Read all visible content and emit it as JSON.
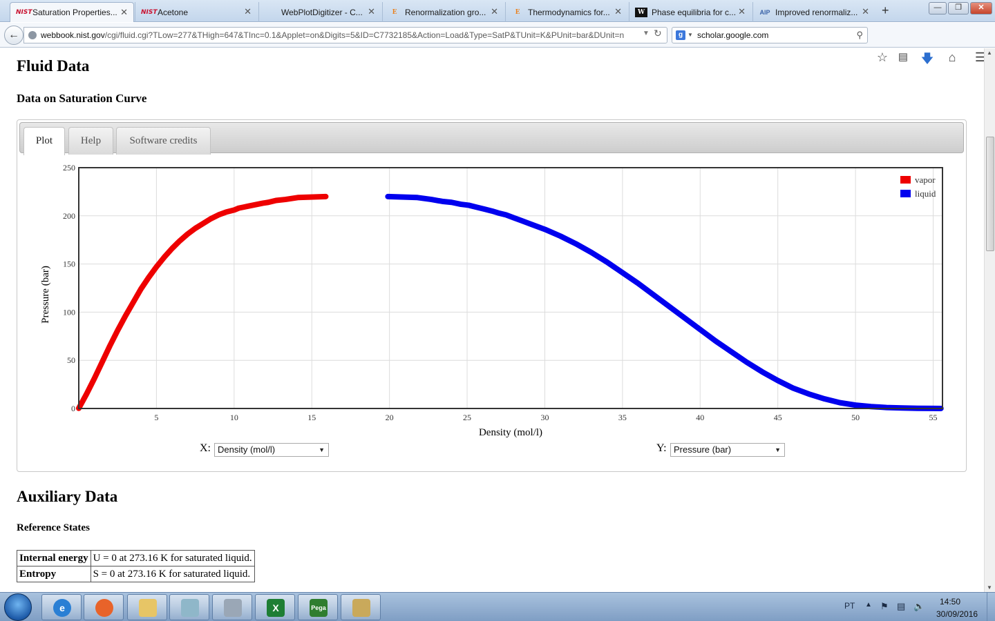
{
  "browser": {
    "tabs": [
      {
        "icon": "nist",
        "title": "Saturation Properties..."
      },
      {
        "icon": "nist",
        "title": "Acetone"
      },
      {
        "icon": "none",
        "title": "WebPlotDigitizer - C..."
      },
      {
        "icon": "e",
        "title": "Renormalization gro..."
      },
      {
        "icon": "e",
        "title": "Thermodynamics for..."
      },
      {
        "icon": "w",
        "title": "Phase equilibria for c..."
      },
      {
        "icon": "aip",
        "title": "Improved renormaliz..."
      }
    ],
    "new_tab": "+",
    "url_host": "webbook.nist.gov",
    "url_rest": "/cgi/fluid.cgi?TLow=277&THigh=647&TInc=0.1&Applet=on&Digits=5&ID=C7732185&Action=Load&Type=SatP&TUnit=K&PUnit=bar&DUnit=n",
    "url_prefix": "",
    "search_text": "scholar.google.com",
    "search_engine_letter": "g"
  },
  "page": {
    "heading_fluid": "Fluid Data",
    "subheading_sat": "Data on Saturation Curve",
    "panel_tabs": [
      "Plot",
      "Help",
      "Software credits"
    ],
    "x_label": "X:",
    "x_value": "Density (mol/l)",
    "y_label": "Y:",
    "y_value": "Pressure (bar)",
    "heading_aux": "Auxiliary Data",
    "subheading_ref": "Reference States",
    "ref_rows": [
      {
        "key": "Internal energy",
        "value": "U = 0 at 273.16 K for saturated liquid."
      },
      {
        "key": "Entropy",
        "value": "S = 0 at 273.16 K for saturated liquid."
      }
    ]
  },
  "chart_data": {
    "type": "scatter",
    "xlabel": "Density (mol/l)",
    "ylabel": "Pressure (bar)",
    "xlim": [
      0,
      55.6
    ],
    "ylim": [
      0,
      250
    ],
    "xticks": [
      5,
      10,
      15,
      20,
      25,
      30,
      35,
      40,
      45,
      50,
      55
    ],
    "yticks": [
      0,
      50,
      100,
      150,
      200,
      250
    ],
    "grid": true,
    "legend_position": "top-right",
    "series": [
      {
        "name": "vapor",
        "color": "#ee0000",
        "x": [
          0.0,
          0.5,
          1.0,
          1.5,
          2.0,
          2.5,
          3.0,
          3.5,
          4.0,
          4.5,
          5.0,
          5.5,
          6.0,
          6.5,
          7.0,
          7.5,
          8.0,
          8.5,
          9.0,
          9.5,
          10.0,
          10.3,
          10.6,
          10.9,
          11.2,
          11.5,
          11.8,
          12.2,
          12.7,
          13.3,
          14.1,
          15.9
        ],
        "y": [
          0.2,
          15,
          31,
          48,
          65,
          81,
          96,
          110,
          124,
          136,
          147,
          157,
          166,
          174,
          181,
          187,
          192,
          197,
          201,
          204,
          206,
          208,
          209,
          210,
          211,
          212,
          213,
          214,
          216,
          217,
          219,
          220
        ]
      },
      {
        "name": "liquid",
        "color": "#0000ee",
        "x": [
          19.9,
          21.8,
          22.7,
          23.4,
          24.0,
          24.6,
          25.1,
          25.6,
          26.1,
          26.6,
          27.0,
          27.5,
          28.0,
          28.5,
          29.0,
          30.0,
          31.0,
          32.0,
          33.0,
          34.0,
          35.0,
          36.0,
          37.0,
          38.0,
          39.0,
          40.0,
          41.0,
          42.0,
          43.0,
          44.0,
          45.0,
          46.0,
          47.0,
          48.0,
          49.0,
          50.0,
          51.0,
          52.0,
          53.0,
          54.0,
          55.0,
          55.5
        ],
        "y": [
          220,
          219,
          217,
          215,
          214,
          212,
          211,
          209,
          207,
          205,
          203,
          201,
          198,
          195,
          192,
          186,
          179,
          171,
          162,
          152,
          141,
          130,
          118,
          106,
          94,
          82,
          70,
          59,
          48,
          38,
          29,
          21,
          15,
          10,
          6,
          3.5,
          2,
          1,
          0.5,
          0.2,
          0.05,
          0.02
        ]
      }
    ]
  },
  "taskbar": {
    "apps": [
      {
        "name": "ie-icon",
        "glyph": "e",
        "color": "#2a7fd4"
      },
      {
        "name": "firefox-icon",
        "glyph": "",
        "color": "#e8632a"
      },
      {
        "name": "explorer-icon",
        "glyph": "",
        "color": "#e7c566"
      },
      {
        "name": "notebook-icon",
        "glyph": "",
        "color": "#8fb7c9"
      },
      {
        "name": "calculator-icon",
        "glyph": "",
        "color": "#9aa7b6"
      },
      {
        "name": "excel-icon",
        "glyph": "X",
        "color": "#1e7e34"
      },
      {
        "name": "pegapontos-icon",
        "glyph": "Pega",
        "color": "#2f7d2f"
      },
      {
        "name": "paint-icon",
        "glyph": "",
        "color": "#c9a95b"
      }
    ],
    "language": "PT",
    "time": "14:50",
    "date": "30/09/2016"
  }
}
